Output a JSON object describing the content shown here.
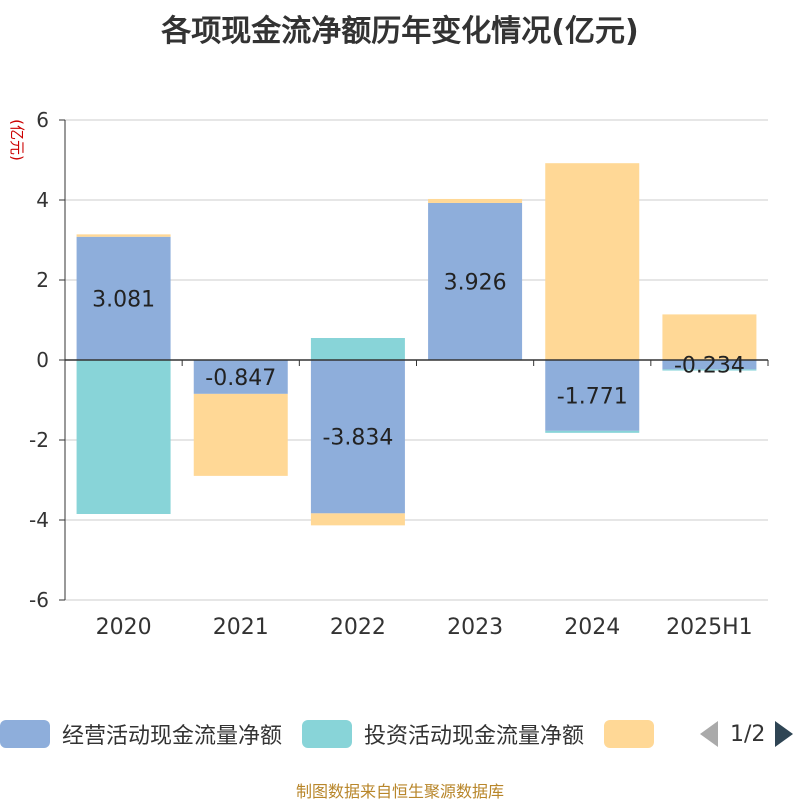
{
  "chart_data": {
    "type": "bar",
    "stacked": true,
    "title": "各项现金流净额历年变化情况(亿元)",
    "ylabel": "(亿元)",
    "categories": [
      "2020",
      "2021",
      "2022",
      "2023",
      "2024",
      "2025H1"
    ],
    "ylim": [
      -6,
      6
    ],
    "yticks": [
      6,
      4,
      2,
      0,
      -2,
      -4,
      -6
    ],
    "grid": true,
    "series": [
      {
        "name": "经营活动现金流量净额",
        "color": "#8eaedb",
        "values": [
          3.081,
          -0.847,
          -3.834,
          3.926,
          -1.771,
          -0.234
        ],
        "labels": [
          "3.081",
          "-0.847",
          "-3.834",
          "3.926",
          "-1.771",
          "-0.234"
        ]
      },
      {
        "name": "投资活动现金流量净额",
        "color": "#88d4d8",
        "values": [
          -3.85,
          0.0,
          0.55,
          0.0,
          -0.05,
          -0.03
        ]
      },
      {
        "name": "",
        "color": "#ffd896",
        "values": [
          0.06,
          -2.05,
          -0.3,
          0.1,
          4.92,
          1.14
        ]
      }
    ],
    "legend_position": "bottom"
  },
  "legend": {
    "items": [
      {
        "label": "经营活动现金流量净额",
        "color": "#8eaedb"
      },
      {
        "label": "投资活动现金流量净额",
        "color": "#88d4d8"
      },
      {
        "label": "",
        "color": "#ffd896"
      }
    ],
    "page": "1/2"
  },
  "source": "制图数据来自恒生聚源数据库"
}
